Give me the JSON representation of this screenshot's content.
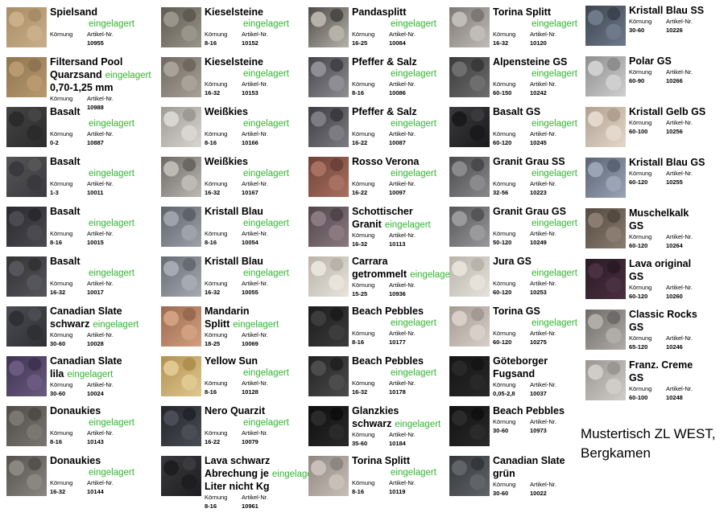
{
  "labels": {
    "grain": "Körnung",
    "article": "Artikel-Nr."
  },
  "columns": [
    [
      {
        "name": [
          "Spielsand"
        ],
        "status": "eingelagert",
        "article": "10955"
      },
      {
        "name": [
          "Filtersand Pool",
          "Quarzsand",
          "0,70-1,25 mm"
        ],
        "status": "eingelagert",
        "article": "10988"
      },
      {
        "name": [
          "Basalt"
        ],
        "status": "eingelagert",
        "grain": "0-2",
        "article": "10887"
      },
      {
        "name": [
          "Basalt"
        ],
        "status": "eingelagert",
        "grain": "1-3",
        "article": "10011"
      },
      {
        "name": [
          "Basalt"
        ],
        "status": "eingelagert",
        "grain": "8-16",
        "article": "10015"
      },
      {
        "name": [
          "Basalt"
        ],
        "status": "eingelagert",
        "grain": "16-32",
        "article": "10017"
      },
      {
        "name": [
          "Canadian Slate",
          "schwarz"
        ],
        "status": "eingelagert",
        "grain": "30-60",
        "article": "10028"
      },
      {
        "name": [
          "Canadian Slate",
          "lila"
        ],
        "status": "eingelagert",
        "grain": "30-60",
        "article": "10024"
      },
      {
        "name": [
          "Donaukies"
        ],
        "status": "eingelagert",
        "grain": "8-16",
        "article": "10143"
      },
      {
        "name": [
          "Donaukies"
        ],
        "status": "eingelagert",
        "grain": "16-32",
        "article": "10144"
      }
    ],
    [
      {
        "name": [
          "Kieselsteine"
        ],
        "status": "eingelagert",
        "grain": "8-16",
        "article": "10152"
      },
      {
        "name": [
          "Kieselsteine"
        ],
        "status": "eingelagert",
        "grain": "16-32",
        "article": "10153"
      },
      {
        "name": [
          "Weißkies"
        ],
        "status": "eingelagert",
        "grain": "8-16",
        "article": "10166"
      },
      {
        "name": [
          "Weißkies"
        ],
        "status": "eingelagert",
        "grain": "16-32",
        "article": "10167"
      },
      {
        "name": [
          "Kristall Blau"
        ],
        "status": "eingelagert",
        "grain": "8-16",
        "article": "10054"
      },
      {
        "name": [
          "Kristall Blau"
        ],
        "status": "eingelagert",
        "grain": "16-32",
        "article": "10055"
      },
      {
        "name": [
          "Mandarin",
          "Splitt"
        ],
        "status": "eingelagert",
        "grain": "18-25",
        "article": "10069"
      },
      {
        "name": [
          "Yellow Sun"
        ],
        "status": "eingelagert",
        "grain": "8-16",
        "article": "10128"
      },
      {
        "name": [
          "Nero Quarzit"
        ],
        "status": "eingelagert",
        "grain": "16-22",
        "article": "10079"
      },
      {
        "name": [
          "Lava schwarz",
          "Abrechung je",
          "Liter nicht Kg"
        ],
        "status": "eingelagert",
        "grain": "8-16",
        "article": "10961"
      }
    ],
    [
      {
        "name": [
          "Pandasplitt"
        ],
        "status": "eingelagert",
        "grain": "16-25",
        "article": "10084"
      },
      {
        "name": [
          "Pfeffer & Salz"
        ],
        "status": "eingelagert",
        "grain": "8-16",
        "article": "10086"
      },
      {
        "name": [
          "Pfeffer & Salz"
        ],
        "status": "eingelagert",
        "grain": "16-22",
        "article": "10087"
      },
      {
        "name": [
          "Rosso Verona"
        ],
        "status": "eingelagert",
        "grain": "16-22",
        "article": "10097"
      },
      {
        "name": [
          "Schottischer",
          "Granit"
        ],
        "status": "eingelagert",
        "grain": "16-32",
        "article": "10113"
      },
      {
        "name": [
          "Carrara",
          "getrommelt"
        ],
        "status": "eingelagert",
        "grain": "15-25",
        "article": "10936"
      },
      {
        "name": [
          "Beach Pebbles"
        ],
        "status": "eingelagert",
        "grain": "8-16",
        "article": "10177"
      },
      {
        "name": [
          "Beach Pebbles"
        ],
        "status": "eingelagert",
        "grain": "16-32",
        "article": "10178"
      },
      {
        "name": [
          "Glanzkies",
          "schwarz"
        ],
        "status": "eingelagert",
        "grain": "35-60",
        "article": "10184"
      },
      {
        "name": [
          "Torina Splitt"
        ],
        "status": "eingelagert",
        "grain": "8-16",
        "article": "10119"
      }
    ],
    [
      {
        "name": [
          "Torina Splitt"
        ],
        "status": "eingelagert",
        "grain": "16-32",
        "article": "10120"
      },
      {
        "name": [
          "Alpensteine GS"
        ],
        "status": "eingelagert",
        "grain": "60-150",
        "article": "10242"
      },
      {
        "name": [
          "Basalt GS"
        ],
        "status": "eingelagert",
        "grain": "60-120",
        "article": "10245"
      },
      {
        "name": [
          "Granit Grau SS"
        ],
        "status": "eingelagert",
        "grain": "32-56",
        "article": "10223"
      },
      {
        "name": [
          "Granit Grau GS"
        ],
        "status": "eingelagert",
        "grain": "50-120",
        "article": "10249"
      },
      {
        "name": [
          "Jura GS"
        ],
        "status": "eingelagert",
        "grain": "60-120",
        "article": "10253"
      },
      {
        "name": [
          "Torina GS"
        ],
        "status": "eingelagert",
        "grain": "60-120",
        "article": "10275"
      },
      {
        "name": [
          "Göteborger",
          "Fugsand"
        ],
        "grain": "0,05-2,8",
        "article": "10037"
      },
      {
        "name": [
          "Beach Pebbles"
        ],
        "grain": "30-60",
        "article": "10973"
      },
      {
        "name": [
          "Canadian Slate",
          "grün"
        ],
        "grain": "30-60",
        "article": "10022"
      }
    ],
    [
      {
        "name": [
          "Kristall Blau SS"
        ],
        "grain": "30-60",
        "article": "10226"
      },
      {
        "name": [
          "Polar GS"
        ],
        "grain": "60-90",
        "article": "10266"
      },
      {
        "name": [
          "Kristall Gelb GS"
        ],
        "grain": "60-100",
        "article": "10256"
      },
      {
        "name": [
          "Kristall Blau GS"
        ],
        "grain": "60-120",
        "article": "10255"
      },
      {
        "name": [
          "Muschelkalk",
          "GS"
        ],
        "grain": "60-120",
        "article": "10264"
      },
      {
        "name": [
          "Lava original",
          "GS"
        ],
        "grain": "60-120",
        "article": "10260"
      },
      {
        "name": [
          "Classic Rocks",
          "GS"
        ],
        "grain": "65-120",
        "article": "10246"
      },
      {
        "name": [
          "Franz. Creme",
          "GS"
        ],
        "grain": "60-100",
        "article": "10248"
      }
    ]
  ],
  "footer": [
    "Mustertisch ZL WEST,",
    "Bergkamen"
  ]
}
